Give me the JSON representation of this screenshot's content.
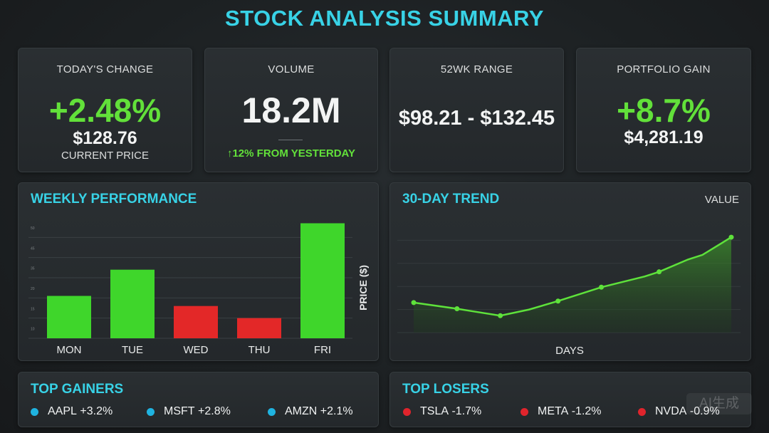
{
  "header": {
    "title": "STOCK ANALYSIS SUMMARY"
  },
  "kpis": {
    "todays_change": {
      "label": "TODAY'S CHANGE",
      "value": "+2.48%",
      "price": "$128.76",
      "price_label": "CURRENT PRICE"
    },
    "volume": {
      "label": "VOLUME",
      "value": "18.2M",
      "change": "↑12% FROM YESTERDAY"
    },
    "range": {
      "label": "52WK RANGE",
      "value": "$98.21 - $132.45"
    },
    "portfolio": {
      "label": "PORTFOLIO GAIN",
      "value": "+8.7%",
      "amount": "$4,281.19"
    }
  },
  "weekly": {
    "title": "WEEKLY PERFORMANCE"
  },
  "trend": {
    "title": "30-DAY TREND",
    "value_label": "VALUE"
  },
  "chart_data": [
    {
      "type": "bar",
      "title": "WEEKLY PERFORMANCE",
      "categories": [
        "MON",
        "TUE",
        "WED",
        "THU",
        "FRI"
      ],
      "values": [
        21,
        34,
        16,
        10,
        57
      ],
      "bar_colors": [
        "#3fd62b",
        "#3fd62b",
        "#e32828",
        "#e32828",
        "#3fd62b"
      ],
      "ylabel": "PRICE ($)",
      "yticks": [
        10,
        15,
        20,
        35,
        45,
        50
      ],
      "ylim": [
        0,
        60
      ],
      "grid": true
    },
    {
      "type": "area",
      "title": "30-DAY TREND",
      "xlabel": "DAYS",
      "x": [
        0,
        3,
        4,
        6,
        8,
        10,
        13,
        16,
        17,
        19,
        20,
        22
      ],
      "values": [
        19.5,
        15.5,
        14.0,
        11.0,
        15.0,
        20.5,
        29.5,
        36.5,
        39.5,
        47.5,
        50.5,
        62.0
      ],
      "ylim": [
        0,
        75
      ],
      "line_color": "#5ee23b",
      "marker_x": [
        0,
        3,
        6,
        10,
        13,
        17,
        22
      ],
      "grid": true
    }
  ],
  "gainers": {
    "title": "TOP GAINERS",
    "items": [
      {
        "symbol": "AAPL",
        "change": "+3.2%"
      },
      {
        "symbol": "MSFT",
        "change": "+2.8%"
      },
      {
        "symbol": "AMZN",
        "change": "+2.1%"
      }
    ],
    "dot_color": "#1fb3e0"
  },
  "losers": {
    "title": "TOP LOSERS",
    "items": [
      {
        "symbol": "TSLA",
        "change": "-1.7%"
      },
      {
        "symbol": "META",
        "change": "-1.2%"
      },
      {
        "symbol": "NVDA",
        "change": "-0.9%"
      }
    ],
    "dot_color": "#e0242c"
  },
  "watermark": {
    "text": "AI生成"
  }
}
